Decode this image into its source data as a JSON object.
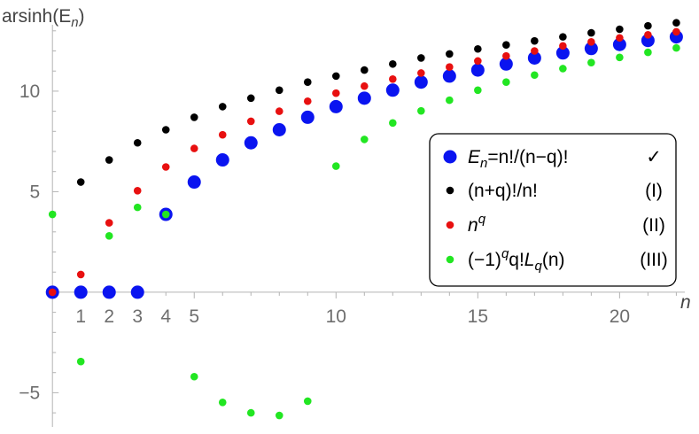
{
  "chart_data": {
    "type": "scatter",
    "ylabel_parts": [
      "arsinh(E",
      "n",
      ")"
    ],
    "xlabel": "n",
    "xlim": [
      -0.1,
      22.3
    ],
    "ylim": [
      -6.7,
      13.3
    ],
    "x_ticks_major": [
      5,
      10,
      15,
      20
    ],
    "x_ticks_extra": [
      1,
      2,
      3,
      4,
      5
    ],
    "y_ticks": [
      -5,
      5,
      10
    ],
    "series": [
      {
        "key": "E",
        "color": "#0a14f0",
        "marker": "large",
        "x": [
          0,
          1,
          2,
          3,
          4,
          5,
          6,
          7,
          8,
          9,
          10,
          11,
          12,
          13,
          14,
          15,
          16,
          17,
          18,
          19,
          20,
          21,
          22
        ],
        "y": [
          0,
          0,
          0,
          0,
          3.87,
          5.48,
          6.58,
          7.43,
          8.08,
          8.7,
          9.23,
          9.65,
          10.05,
          10.45,
          10.75,
          11.05,
          11.35,
          11.65,
          11.9,
          12.12,
          12.32,
          12.52,
          12.7
        ]
      },
      {
        "key": "I",
        "color": "#000000",
        "marker": "small",
        "x": [
          1,
          2,
          3,
          4,
          5,
          6,
          7,
          8,
          9,
          10,
          11,
          12,
          13,
          14,
          15,
          16,
          17,
          18,
          19,
          20,
          21,
          22
        ],
        "y": [
          5.48,
          6.58,
          7.43,
          8.08,
          8.7,
          9.23,
          9.65,
          10.05,
          10.45,
          10.75,
          11.05,
          11.35,
          11.65,
          11.85,
          12.1,
          12.3,
          12.5,
          12.7,
          12.9,
          13.08,
          13.25,
          13.4
        ]
      },
      {
        "key": "II",
        "color": "#e81010",
        "marker": "small",
        "x": [
          0,
          1,
          2,
          3,
          4,
          5,
          6,
          7,
          8,
          9,
          10,
          11,
          12,
          13,
          14,
          15,
          16,
          17,
          18,
          19,
          20,
          21,
          22
        ],
        "y": [
          0,
          0.88,
          3.45,
          5.05,
          6.23,
          7.15,
          7.83,
          8.5,
          9.0,
          9.5,
          9.9,
          10.25,
          10.6,
          10.9,
          11.2,
          11.5,
          11.75,
          12.0,
          12.25,
          12.45,
          12.65,
          12.8,
          12.95
        ]
      },
      {
        "key": "III",
        "color": "#22e622",
        "marker": "small",
        "x": [
          0,
          1,
          2,
          3,
          4,
          5,
          6,
          7,
          8,
          9,
          10,
          11,
          12,
          13,
          14,
          15,
          16,
          17,
          18,
          19,
          20,
          21,
          22
        ],
        "y": [
          3.87,
          -3.45,
          2.8,
          4.22,
          3.87,
          -4.2,
          -5.48,
          -6.0,
          -6.13,
          -5.42,
          6.27,
          7.6,
          8.42,
          9.02,
          9.55,
          10.05,
          10.45,
          10.8,
          11.12,
          11.42,
          11.68,
          11.93,
          12.15
        ]
      }
    ],
    "legend": {
      "placement": "right",
      "entries": [
        {
          "series": "E",
          "label_parts": [
            "E",
            "n",
            "=n!/(n−q)!"
          ],
          "tag": "✓"
        },
        {
          "series": "I",
          "label_parts": [
            "(n+q)!/n!"
          ],
          "tag": "(I)"
        },
        {
          "series": "II",
          "label_parts": [
            "n",
            "q"
          ],
          "tag": "(II)"
        },
        {
          "series": "III",
          "label_parts": [
            "(−1)",
            "q",
            "q!",
            "L",
            "q",
            "(n)"
          ],
          "tag": "(III)"
        }
      ]
    },
    "grid": false
  }
}
